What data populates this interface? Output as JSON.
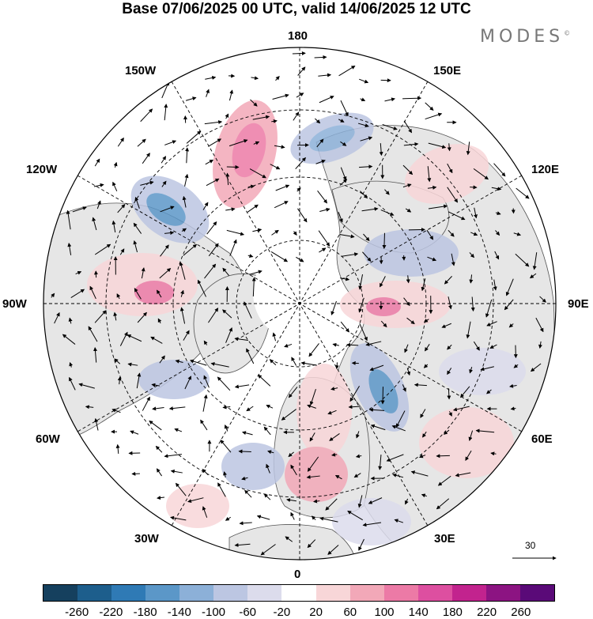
{
  "header": {
    "title": "Base 07/06/2025 00 UTC, valid 14/06/2025 12 UTC",
    "brand": "MODES",
    "brand_mark": "©"
  },
  "longitude_labels": {
    "top": "180",
    "bottom": "0",
    "left": "90W",
    "right": "90E",
    "upper_left": "150W",
    "upper_right": "150E",
    "mid_left_top": "120W",
    "mid_right_top": "120E",
    "mid_left_bottom": "60W",
    "mid_right_bottom": "60E",
    "lower_left": "30W",
    "lower_right": "30E"
  },
  "vector_scale": {
    "label": "30"
  },
  "colorbar": {
    "colors": [
      "#15405e",
      "#1d5e8c",
      "#2f7ab5",
      "#5b97c8",
      "#8cb0d8",
      "#bcc6e2",
      "#dcdcec",
      "#ffffff",
      "#f8d6d8",
      "#f2a8b8",
      "#ec7aa6",
      "#dd4fa0",
      "#c2238e",
      "#8c1482",
      "#5a0a78"
    ],
    "ticks": [
      "-260",
      "-220",
      "-180",
      "-140",
      "-100",
      "-60",
      "-20",
      "20",
      "60",
      "100",
      "140",
      "180",
      "220",
      "260"
    ]
  },
  "colors": {
    "land": "#e6e6e6",
    "ocean": "#ffffff",
    "grid": "#000000",
    "positive": "#f2a8b8",
    "negative": "#8cb0d8"
  }
}
